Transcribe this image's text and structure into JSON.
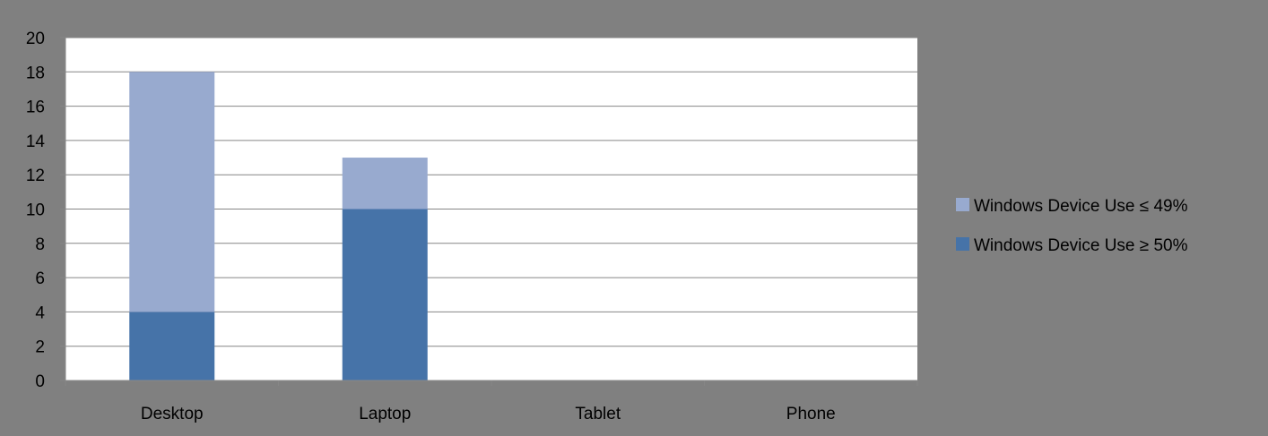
{
  "chart_data": {
    "type": "bar",
    "stacked": true,
    "categories": [
      "Desktop",
      "Laptop",
      "Tablet",
      "Phone"
    ],
    "series": [
      {
        "name": "Windows Device Use ≥ 50%",
        "values": [
          4,
          10,
          0,
          0
        ],
        "color": "#4673A8"
      },
      {
        "name": "Windows Device Use ≤ 49%",
        "values": [
          14,
          3,
          0,
          0
        ],
        "color": "#98AACF"
      }
    ],
    "y_ticks": [
      "0",
      "2",
      "4",
      "6",
      "8",
      "10",
      "12",
      "14",
      "16",
      "18",
      "20"
    ],
    "ylim": [
      0,
      20
    ],
    "grid": true,
    "legend_position": "right",
    "legend_order": [
      1,
      0
    ],
    "background_color": "#808080",
    "plot_background_color": "#FFFFFF"
  }
}
